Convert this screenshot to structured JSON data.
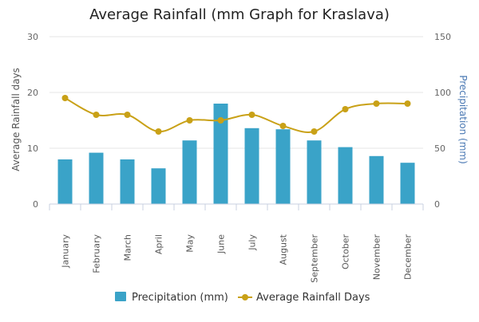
{
  "chart_data": {
    "type": "bar",
    "title": "Average Rainfall (mm Graph for Kraslava)",
    "categories": [
      "January",
      "February",
      "March",
      "April",
      "May",
      "June",
      "July",
      "August",
      "September",
      "October",
      "November",
      "December"
    ],
    "series": [
      {
        "name": "Precipitation (mm)",
        "type": "bar",
        "axis": "right",
        "color": "#3aa3c8",
        "values": [
          40,
          46,
          40,
          32,
          57,
          90,
          68,
          67,
          57,
          51,
          43,
          37
        ]
      },
      {
        "name": "Average Rainfall Days",
        "type": "line",
        "axis": "left",
        "color": "#c9a117",
        "values": [
          19,
          16,
          16,
          13,
          15,
          15,
          16,
          14,
          13,
          17,
          18,
          18
        ]
      }
    ],
    "y_left": {
      "label": "Average Rainfall days",
      "ticks": [
        0,
        10,
        20,
        30
      ],
      "min": 0,
      "max": 30,
      "label_color": "#555555"
    },
    "y_right": {
      "label": "Precipitation (mm)",
      "ticks": [
        0,
        50,
        100,
        150
      ],
      "min": 0,
      "max": 150,
      "label_color": "#4a78b3"
    },
    "grid": true,
    "legend_position": "bottom-center"
  }
}
